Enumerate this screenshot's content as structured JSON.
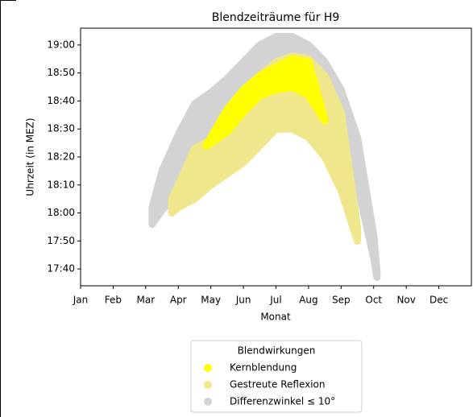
{
  "chart_data": {
    "type": "band",
    "title": "Blendzeiträume für H9",
    "xlabel": "Monat",
    "ylabel": "Uhrzeit (in MEZ)",
    "legend_title": "Blendwirkungen",
    "legend": "lower center",
    "xlim": [
      0,
      12
    ],
    "xticks": [
      {
        "value": 0,
        "label": "Jan"
      },
      {
        "value": 1,
        "label": "Feb"
      },
      {
        "value": 2,
        "label": "Mar"
      },
      {
        "value": 3,
        "label": "Apr"
      },
      {
        "value": 4,
        "label": "May"
      },
      {
        "value": 5,
        "label": "Jun"
      },
      {
        "value": 6,
        "label": "Jul"
      },
      {
        "value": 7,
        "label": "Aug"
      },
      {
        "value": 8,
        "label": "Sep"
      },
      {
        "value": 9,
        "label": "Oct"
      },
      {
        "value": 10,
        "label": "Nov"
      },
      {
        "value": 11,
        "label": "Dec"
      }
    ],
    "ylim": [
      1054,
      1146
    ],
    "yticks": [
      {
        "value": 1060,
        "label": "17:40"
      },
      {
        "value": 1070,
        "label": "17:50"
      },
      {
        "value": 1080,
        "label": "18:00"
      },
      {
        "value": 1090,
        "label": "18:10"
      },
      {
        "value": 1100,
        "label": "18:20"
      },
      {
        "value": 1110,
        "label": "18:30"
      },
      {
        "value": 1120,
        "label": "18:40"
      },
      {
        "value": 1130,
        "label": "18:50"
      },
      {
        "value": 1140,
        "label": "19:00"
      }
    ],
    "series": [
      {
        "name": "Kernblendung",
        "color": "#ffff00",
        "x": [
          3.85,
          4,
          4.5,
          5,
          5.5,
          6,
          6.5,
          7,
          7.5
        ],
        "upper": [
          1104,
          1107,
          1117,
          1124,
          1129,
          1132,
          1135,
          1134,
          1113
        ],
        "lower": [
          1104,
          1105,
          1109,
          1116,
          1122,
          1124,
          1125,
          1122,
          1113
        ]
      },
      {
        "name": "Gestreute Reflexion",
        "color": "#f0e68c",
        "x": [
          2.8,
          3,
          3.5,
          4,
          4.5,
          5,
          5.5,
          6,
          6.5,
          7,
          7.5,
          8,
          8.5
        ],
        "upper": [
          1085,
          1090,
          1103,
          1106,
          1116,
          1123,
          1129,
          1134,
          1136,
          1135,
          1129,
          1116,
          1075
        ],
        "lower": [
          1080,
          1082,
          1085,
          1090,
          1094,
          1098,
          1104,
          1110,
          1110,
          1107,
          1100,
          1088,
          1070
        ]
      },
      {
        "name": "Differenzwinkel ≤  10°",
        "color": "#d3d3d3",
        "x": [
          2.2,
          2.5,
          3,
          3.5,
          4,
          4.5,
          5,
          5.5,
          6,
          6.5,
          7,
          7.5,
          8,
          8.5,
          9,
          9.1
        ],
        "upper": [
          1082,
          1095,
          1108,
          1119,
          1123,
          1128,
          1134,
          1140,
          1143,
          1143,
          1140,
          1134,
          1124,
          1107,
          1072,
          1059
        ],
        "lower": [
          1076,
          1081,
          1087,
          1096,
          1103,
          1111,
          1120,
          1127,
          1133,
          1133,
          1127,
          1119,
          1107,
          1090,
          1064,
          1057
        ]
      }
    ]
  }
}
